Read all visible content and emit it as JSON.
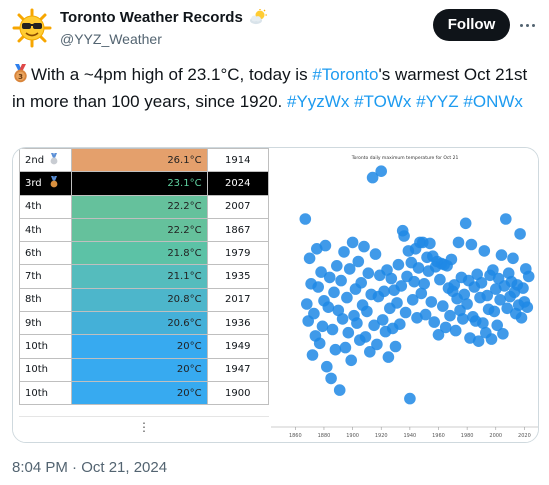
{
  "account": {
    "display_name": "Toronto Weather Records",
    "handle": "@YYZ_Weather",
    "follow_label": "Follow"
  },
  "tweet": {
    "text_before": "With a ~4pm high of 23.1°C, today is ",
    "tag_toronto": "#Toronto",
    "text_after": "'s warmest Oct 21st in more than 100 years, since 1920. ",
    "hashtags": [
      "#YyzWx",
      "#TOWx",
      "#YYZ",
      "#ONWx"
    ],
    "timestamp": "8:04 PM · Oct 21, 2024"
  },
  "table": {
    "rows": [
      {
        "rank": "2nd",
        "temp": "26.1°C",
        "year": "1914",
        "color": "#e4a06c",
        "text_color": "#222",
        "medal": "silver"
      },
      {
        "rank": "3rd",
        "temp": "23.1°C",
        "year": "2024",
        "color": "#000000",
        "text_color": "#5fd1a0",
        "medal": "bronze",
        "highlight": true
      },
      {
        "rank": "4th",
        "temp": "22.2°C",
        "year": "2007",
        "color": "#65c19c",
        "text_color": "#222"
      },
      {
        "rank": "4th",
        "temp": "22.2°C",
        "year": "1867",
        "color": "#65c19c",
        "text_color": "#222"
      },
      {
        "rank": "6th",
        "temp": "21.8°C",
        "year": "1979",
        "color": "#5cc2a6",
        "text_color": "#222"
      },
      {
        "rank": "7th",
        "temp": "21.1°C",
        "year": "1935",
        "color": "#55bcbd",
        "text_color": "#222"
      },
      {
        "rank": "8th",
        "temp": "20.8°C",
        "year": "2017",
        "color": "#4db6cb",
        "text_color": "#222"
      },
      {
        "rank": "9th",
        "temp": "20.6°C",
        "year": "1936",
        "color": "#44b0d8",
        "text_color": "#222"
      },
      {
        "rank": "10th",
        "temp": "20°C",
        "year": "1949",
        "color": "#37aaf0",
        "text_color": "#222"
      },
      {
        "rank": "10th",
        "temp": "20°C",
        "year": "1947",
        "color": "#37aaf0",
        "text_color": "#222"
      },
      {
        "rank": "10th",
        "temp": "20°C",
        "year": "1900",
        "color": "#37aaf0",
        "text_color": "#222"
      }
    ],
    "more_label": "⋮"
  },
  "chart_data": {
    "type": "scatter",
    "title": "Toronto daily maximum temperature for Oct 21",
    "xlabel": "",
    "ylabel": "",
    "x_ticks": [
      1860,
      1880,
      1900,
      1920,
      1940,
      1960,
      1980,
      2000,
      2020
    ],
    "xlim": [
      1850,
      2026
    ],
    "ylim": [
      3,
      27
    ],
    "color": "#1e88e5",
    "points": [
      [
        1867,
        22.2
      ],
      [
        1868,
        14.2
      ],
      [
        1869,
        12.6
      ],
      [
        1870,
        18.5
      ],
      [
        1871,
        16.1
      ],
      [
        1872,
        9.4
      ],
      [
        1873,
        13.3
      ],
      [
        1874,
        11.2
      ],
      [
        1875,
        19.4
      ],
      [
        1876,
        15.8
      ],
      [
        1877,
        10.5
      ],
      [
        1878,
        17.2
      ],
      [
        1879,
        12.1
      ],
      [
        1880,
        14.5
      ],
      [
        1881,
        19.7
      ],
      [
        1882,
        8.3
      ],
      [
        1883,
        13.9
      ],
      [
        1884,
        16.7
      ],
      [
        1885,
        7.2
      ],
      [
        1886,
        11.8
      ],
      [
        1887,
        15.3
      ],
      [
        1888,
        9.9
      ],
      [
        1889,
        17.8
      ],
      [
        1890,
        13.6
      ],
      [
        1891,
        6.1
      ],
      [
        1892,
        16.4
      ],
      [
        1893,
        12.8
      ],
      [
        1894,
        19.1
      ],
      [
        1895,
        10.1
      ],
      [
        1896,
        14.8
      ],
      [
        1897,
        11.5
      ],
      [
        1898,
        17.5
      ],
      [
        1899,
        8.9
      ],
      [
        1900,
        20.0
      ],
      [
        1901,
        13.1
      ],
      [
        1902,
        15.6
      ],
      [
        1903,
        12.4
      ],
      [
        1904,
        18.2
      ],
      [
        1905,
        10.8
      ],
      [
        1906,
        16.2
      ],
      [
        1907,
        14.1
      ],
      [
        1908,
        19.6
      ],
      [
        1909,
        11.1
      ],
      [
        1910,
        13.5
      ],
      [
        1911,
        17.1
      ],
      [
        1912,
        9.7
      ],
      [
        1913,
        15.1
      ],
      [
        1914,
        26.1
      ],
      [
        1915,
        12.2
      ],
      [
        1916,
        18.9
      ],
      [
        1917,
        10.4
      ],
      [
        1918,
        14.9
      ],
      [
        1919,
        16.9
      ],
      [
        1920,
        26.7
      ],
      [
        1921,
        12.7
      ],
      [
        1922,
        15.4
      ],
      [
        1923,
        11.6
      ],
      [
        1924,
        17.4
      ],
      [
        1925,
        9.2
      ],
      [
        1926,
        13.8
      ],
      [
        1927,
        16.6
      ],
      [
        1928,
        11.9
      ],
      [
        1929,
        15.5
      ],
      [
        1930,
        10.2
      ],
      [
        1931,
        14.3
      ],
      [
        1932,
        17.9
      ],
      [
        1933,
        12.3
      ],
      [
        1934,
        15.9
      ],
      [
        1935,
        21.1
      ],
      [
        1936,
        20.6
      ],
      [
        1937,
        13.4
      ],
      [
        1938,
        16.8
      ],
      [
        1939,
        19.2
      ],
      [
        1940,
        5.3
      ],
      [
        1941,
        18.1
      ],
      [
        1942,
        14.6
      ],
      [
        1943,
        16.3
      ],
      [
        1944,
        19.4
      ],
      [
        1945,
        12.9
      ],
      [
        1946,
        17.6
      ],
      [
        1947,
        20.0
      ],
      [
        1948,
        15.2
      ],
      [
        1949,
        20.0
      ],
      [
        1950,
        16.1
      ],
      [
        1951,
        13.2
      ],
      [
        1952,
        18.6
      ],
      [
        1953,
        17.3
      ],
      [
        1954,
        19.9
      ],
      [
        1955,
        14.4
      ],
      [
        1956,
        18.7
      ],
      [
        1957,
        12.5
      ],
      [
        1958,
        17.7
      ],
      [
        1959,
        18.2
      ],
      [
        1960,
        11.3
      ],
      [
        1961,
        16.5
      ],
      [
        1962,
        18.0
      ],
      [
        1963,
        14.0
      ],
      [
        1964,
        17.9
      ],
      [
        1965,
        12.0
      ],
      [
        1966,
        17.8
      ],
      [
        1967,
        15.7
      ],
      [
        1968,
        13.1
      ],
      [
        1969,
        18.4
      ],
      [
        1970,
        15.4
      ],
      [
        1971,
        16.0
      ],
      [
        1972,
        11.7
      ],
      [
        1973,
        14.7
      ],
      [
        1974,
        20.0
      ],
      [
        1975,
        13.6
      ],
      [
        1976,
        16.7
      ],
      [
        1977,
        12.8
      ],
      [
        1978,
        15.1
      ],
      [
        1979,
        21.8
      ],
      [
        1980,
        14.2
      ],
      [
        1981,
        16.4
      ],
      [
        1982,
        11.0
      ],
      [
        1983,
        19.8
      ],
      [
        1984,
        13.0
      ],
      [
        1985,
        15.8
      ],
      [
        1986,
        12.6
      ],
      [
        1987,
        17.0
      ],
      [
        1988,
        10.7
      ],
      [
        1989,
        14.8
      ],
      [
        1990,
        16.2
      ],
      [
        1991,
        12.4
      ],
      [
        1992,
        19.2
      ],
      [
        1993,
        11.5
      ],
      [
        1994,
        15.0
      ],
      [
        1995,
        13.7
      ],
      [
        1996,
        16.9
      ],
      [
        1997,
        10.9
      ],
      [
        1998,
        17.4
      ],
      [
        1999,
        13.5
      ],
      [
        2000,
        15.6
      ],
      [
        2001,
        12.2
      ],
      [
        2002,
        16.6
      ],
      [
        2003,
        14.6
      ],
      [
        2004,
        18.8
      ],
      [
        2005,
        11.4
      ],
      [
        2006,
        15.9
      ],
      [
        2007,
        22.2
      ],
      [
        2008,
        13.8
      ],
      [
        2009,
        17.1
      ],
      [
        2010,
        14.9
      ],
      [
        2011,
        16.3
      ],
      [
        2012,
        18.5
      ],
      [
        2013,
        15.3
      ],
      [
        2014,
        13.3
      ],
      [
        2015,
        16.0
      ],
      [
        2016,
        14.1
      ],
      [
        2017,
        20.8
      ],
      [
        2018,
        12.9
      ],
      [
        2019,
        15.7
      ],
      [
        2020,
        14.4
      ],
      [
        2021,
        17.5
      ],
      [
        2022,
        13.9
      ],
      [
        2023,
        16.8
      ]
    ],
    "grid": false,
    "legend": "none"
  },
  "colors": {
    "hashtag": "#1d9bf0",
    "follow_bg": "#0f1419",
    "muted": "#536471",
    "point": "#1e88e5"
  },
  "icons": {
    "avatar": "sunglasses-sun-icon",
    "name_badge": "sun-behind-cloud-icon",
    "medal": "third-place-medal-icon"
  }
}
